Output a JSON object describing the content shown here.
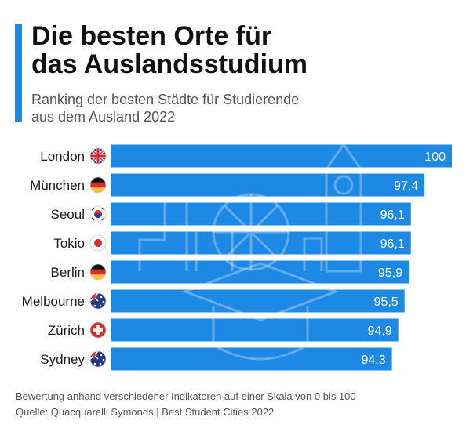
{
  "header": {
    "title_line1": "Die besten Orte für",
    "title_line2": "das Auslandsstudium",
    "subtitle_line1": "Ranking der besten Städte für Studierende",
    "subtitle_line2": "aus dem Ausland 2022"
  },
  "footer": {
    "note": "Bewertung anhand verschiedener Indikatoren auf einer Skala von 0 bis 100",
    "source": "Quelle: Quacquarelli Symonds | Best Student Cities 2022"
  },
  "colors": {
    "accent": "#1e88e5",
    "bar": "#1e88e5",
    "value_text": "#ffffff"
  },
  "chart_data": {
    "type": "bar",
    "orientation": "horizontal",
    "categories": [
      "London",
      "München",
      "Seoul",
      "Tokio",
      "Berlin",
      "Melbourne",
      "Zürich",
      "Sydney"
    ],
    "values": [
      100,
      97.4,
      96.1,
      96.1,
      95.9,
      95.5,
      94.9,
      94.3
    ],
    "value_labels": [
      "100",
      "97,4",
      "96,1",
      "96,1",
      "95,9",
      "95,5",
      "94,9",
      "94,3"
    ],
    "flags": [
      "uk-flag-icon",
      "germany-flag-icon",
      "south-korea-flag-icon",
      "japan-flag-icon",
      "germany-flag-icon",
      "australia-flag-icon",
      "switzerland-flag-icon",
      "australia-flag-icon"
    ],
    "xlim": [
      0,
      100
    ],
    "title": "",
    "xlabel": "",
    "ylabel": "",
    "grid": false,
    "legend": "none"
  }
}
